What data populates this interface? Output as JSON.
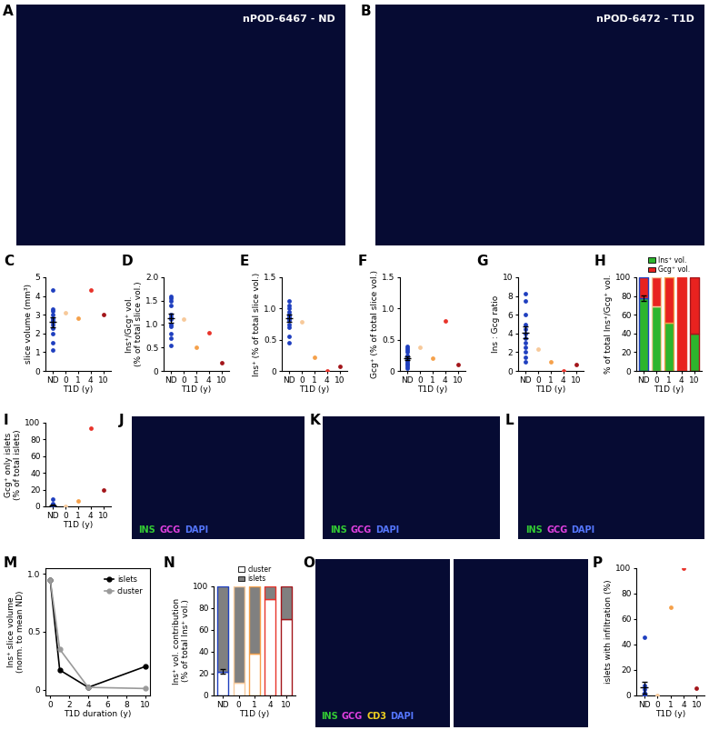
{
  "chart_data": [
    {
      "panel": "C",
      "type": "scatter",
      "ylabel": "slice volume (mm³)",
      "xlabel": "T1D (y)",
      "categories": [
        "ND",
        "0",
        "1",
        "4",
        "10"
      ],
      "values": [
        [
          4.3,
          3.3,
          3.2,
          3.0,
          2.8,
          2.7,
          2.6,
          2.5,
          2.3,
          2.0,
          1.5,
          1.1
        ],
        [
          3.1
        ],
        [
          2.8
        ],
        [
          4.3
        ],
        [
          3.0
        ]
      ],
      "colors": [
        "#1f3fbf",
        "#f7c99a",
        "#f5a04a",
        "#e8332a",
        "#a3151a"
      ],
      "mean": [
        2.61,
        null,
        null,
        null,
        null
      ],
      "error": [
        0.26,
        null,
        null,
        null,
        null
      ],
      "ylim": [
        0,
        5
      ],
      "yticks": [
        0,
        1,
        2,
        3,
        4,
        5
      ]
    },
    {
      "panel": "D",
      "type": "scatter",
      "ylabel": "Ins⁺/Gcg⁺ vol.\n(% of total slice vol.)",
      "xlabel": "T1D (y)",
      "categories": [
        "ND",
        "0",
        "1",
        "4",
        "10"
      ],
      "values": [
        [
          1.6,
          1.55,
          1.5,
          1.4,
          1.2,
          1.15,
          1.1,
          1.0,
          0.95,
          0.8,
          0.7,
          0.55
        ],
        [
          1.1
        ],
        [
          0.5
        ],
        [
          0.82
        ],
        [
          0.18
        ]
      ],
      "colors": [
        "#1f3fbf",
        "#f7c99a",
        "#f5a04a",
        "#e8332a",
        "#a3151a"
      ],
      "mean": [
        1.13,
        null,
        null,
        null,
        null
      ],
      "error": [
        0.1,
        null,
        null,
        null,
        null
      ],
      "ylim": [
        0,
        2
      ],
      "yticks": [
        0,
        0.5,
        {
          "value": 1,
          "label": "1.0"
        },
        1.5,
        {
          "value": 2,
          "label": "2.0"
        }
      ]
    },
    {
      "panel": "E",
      "type": "scatter",
      "ylabel": "Ins⁺ (% of total slice vol.)",
      "xlabel": "T1D (y)",
      "categories": [
        "ND",
        "0",
        "1",
        "4",
        "10"
      ],
      "values": [
        [
          1.12,
          1.05,
          1.0,
          0.95,
          0.9,
          0.88,
          0.85,
          0.82,
          0.75,
          0.7,
          0.55,
          0.45
        ],
        [
          0.78
        ],
        [
          0.22
        ],
        [
          0.0
        ],
        [
          0.07
        ]
      ],
      "colors": [
        "#1f3fbf",
        "#f7c99a",
        "#f5a04a",
        "#e8332a",
        "#a3151a"
      ],
      "mean": [
        0.84,
        null,
        null,
        null,
        null
      ],
      "error": [
        0.06,
        null,
        null,
        null,
        null
      ],
      "ylim": [
        0,
        1.5
      ],
      "yticks": [
        0,
        0.5,
        {
          "value": 1,
          "label": "1.0"
        },
        1.5
      ]
    },
    {
      "panel": "F",
      "type": "scatter",
      "ylabel": "Gcg⁺ (% of total slice vol.)",
      "xlabel": "T1D (y)",
      "categories": [
        "ND",
        "0",
        "1",
        "4",
        "10"
      ],
      "values": [
        [
          0.4,
          0.37,
          0.33,
          0.3,
          0.25,
          0.2,
          0.18,
          0.15,
          0.12,
          0.1,
          0.08,
          0.05
        ],
        [
          0.38
        ],
        [
          0.2
        ],
        [
          0.8
        ],
        [
          0.1
        ]
      ],
      "colors": [
        "#1f3fbf",
        "#f7c99a",
        "#f5a04a",
        "#e8332a",
        "#a3151a"
      ],
      "mean": [
        0.21,
        null,
        null,
        null,
        null
      ],
      "error": [
        0.03,
        null,
        null,
        null,
        null
      ],
      "ylim": [
        0,
        1.5
      ],
      "yticks": [
        0,
        0.5,
        {
          "value": 1,
          "label": "1.0"
        },
        1.5
      ]
    },
    {
      "panel": "G",
      "type": "scatter",
      "ylabel": "Ins : Gcg ratio",
      "xlabel": "T1D (y)",
      "categories": [
        "ND",
        "0",
        "1",
        "4",
        "10"
      ],
      "values": [
        [
          8.3,
          7.5,
          6.0,
          5.0,
          4.5,
          4.0,
          3.5,
          3.0,
          2.5,
          2.0,
          1.5,
          1.0
        ],
        [
          2.3
        ],
        [
          1.0
        ],
        [
          0.0
        ],
        [
          0.7
        ]
      ],
      "colors": [
        "#1f3fbf",
        "#f7c99a",
        "#f5a04a",
        "#e8332a",
        "#a3151a"
      ],
      "mean": [
        4.1,
        null,
        null,
        null,
        null
      ],
      "error": [
        0.65,
        null,
        null,
        null,
        null
      ],
      "ylim": [
        0,
        10
      ],
      "yticks": [
        0,
        2,
        4,
        6,
        8,
        10
      ]
    },
    {
      "panel": "H",
      "type": "bar",
      "stacked": true,
      "legend": "top",
      "ylabel": "% of total Ins⁺/Gcg⁺ vol.",
      "xlabel": "T1D (y)",
      "categories": [
        "ND",
        "0",
        "1",
        "4",
        "10"
      ],
      "colors": [
        "#1f3fbf",
        "#f7c99a",
        "#f5a04a",
        "#e8332a",
        "#a3151a"
      ],
      "series": [
        {
          "name": "Ins⁺ vol.",
          "color": "#2db52d",
          "values": [
            78,
            69,
            51,
            1,
            40
          ],
          "error": [
            3,
            null,
            null,
            null,
            null
          ]
        },
        {
          "name": "Gcg⁺ vol.",
          "color": "#e8221f",
          "values": [
            22,
            31,
            49,
            99,
            60
          ]
        }
      ],
      "ylim": [
        0,
        100
      ],
      "yticks": [
        0,
        20,
        40,
        60,
        80,
        100
      ]
    },
    {
      "panel": "I",
      "type": "scatter",
      "ylabel": "Gcg⁺ only islets\n(% of total islets)",
      "xlabel": "T1D (y)",
      "categories": [
        "ND",
        "0",
        "1",
        "4",
        "10"
      ],
      "values": [
        [
          9,
          3,
          2,
          1,
          1,
          0.5,
          0,
          0,
          0,
          0,
          0,
          0
        ],
        [
          0
        ],
        [
          6
        ],
        [
          94
        ],
        [
          20
        ]
      ],
      "colors": [
        "#1f3fbf",
        "#f7c99a",
        "#f5a04a",
        "#e8332a",
        "#a3151a"
      ],
      "mean": [
        1.4,
        null,
        null,
        null,
        null
      ],
      "error": [
        0.75,
        null,
        null,
        null,
        null
      ],
      "ylim": [
        0,
        100
      ],
      "yticks": [
        0,
        20,
        40,
        60,
        80,
        100
      ]
    },
    {
      "panel": "M",
      "type": "line",
      "legend": "upper right",
      "ylabel": "Ins⁺ slice volume\n(norm. to mean ND)",
      "xlabel": "T1D duration (y)",
      "x": [
        0,
        1,
        4,
        10
      ],
      "series": [
        {
          "name": "islets",
          "color": "#000000",
          "marker": "o",
          "values": [
            0.95,
            0.17,
            0.02,
            0.2
          ]
        },
        {
          "name": "cluster",
          "color": "#9a9a9a",
          "marker": "o",
          "values": [
            0.95,
            0.35,
            0.02,
            0.01
          ]
        }
      ],
      "xlim": [
        -0.5,
        10.5
      ],
      "xticks": [
        0,
        2,
        4,
        6,
        8,
        10
      ],
      "ylim": [
        -0.05,
        1.05
      ],
      "yticks": [
        0,
        0.5,
        {
          "value": 1,
          "label": "1.0"
        }
      ]
    },
    {
      "panel": "N",
      "type": "bar",
      "stacked": true,
      "legend": "top",
      "ylabel": "Ins⁺ vol. contribution\n(% of total Ins⁺ vol.)",
      "xlabel": "T1D (y)",
      "categories": [
        "ND",
        "0",
        "1",
        "4",
        "10"
      ],
      "colors": [
        "#1f3fbf",
        "#f7c99a",
        "#f5a04a",
        "#e8332a",
        "#a3151a"
      ],
      "series": [
        {
          "name": "cluster",
          "color": "#ffffff",
          "values": [
            22,
            12,
            38,
            88,
            70
          ],
          "error": [
            2,
            null,
            null,
            null,
            null
          ]
        },
        {
          "name": "islets",
          "color": "#808080",
          "values": [
            78,
            88,
            62,
            12,
            30
          ]
        }
      ],
      "ylim": [
        0,
        100
      ],
      "yticks": [
        0,
        20,
        40,
        60,
        80,
        100
      ]
    },
    {
      "panel": "P",
      "type": "scatter",
      "ylabel": "islets with infiltration (%)",
      "xlabel": "T1D (y)",
      "categories": [
        "ND",
        "0",
        "1",
        "4",
        "10"
      ],
      "values": [
        [
          46,
          8,
          5,
          2,
          1,
          0,
          0,
          0,
          0,
          0
        ],
        [
          0
        ],
        [
          69
        ],
        [
          100
        ],
        [
          6
        ]
      ],
      "colors": [
        "#1f3fbf",
        "#f7c99a",
        "#f5a04a",
        "#e8332a",
        "#a3151a"
      ],
      "mean": [
        6.2,
        null,
        null,
        null,
        null
      ],
      "error": [
        4.5,
        null,
        null,
        null,
        null
      ],
      "ylim": [
        0,
        100
      ],
      "yticks": [
        0,
        20,
        40,
        60,
        80,
        100
      ]
    }
  ],
  "images": [
    {
      "panel": "A",
      "label": "nPOD-6467 - ND"
    },
    {
      "panel": "B",
      "label": "nPOD-6472 - T1D"
    },
    {
      "panel": "J",
      "channels": [
        {
          "name": "INS",
          "color": "#33cc33"
        },
        {
          "name": "GCG",
          "color": "#e040e0"
        },
        {
          "name": "DAPI",
          "color": "#5577ff"
        }
      ]
    },
    {
      "panel": "K",
      "channels": [
        {
          "name": "INS",
          "color": "#33cc33"
        },
        {
          "name": "GCG",
          "color": "#e040e0"
        },
        {
          "name": "DAPI",
          "color": "#5577ff"
        }
      ]
    },
    {
      "panel": "L",
      "channels": [
        {
          "name": "INS",
          "color": "#33cc33"
        },
        {
          "name": "GCG",
          "color": "#e040e0"
        },
        {
          "name": "DAPI",
          "color": "#5577ff"
        }
      ]
    },
    {
      "panel": "O",
      "channels": [
        {
          "name": "INS",
          "color": "#33cc33"
        },
        {
          "name": "GCG",
          "color": "#e040e0"
        },
        {
          "name": "CD3",
          "color": "#f0d020"
        },
        {
          "name": "DAPI",
          "color": "#5577ff"
        }
      ]
    }
  ]
}
